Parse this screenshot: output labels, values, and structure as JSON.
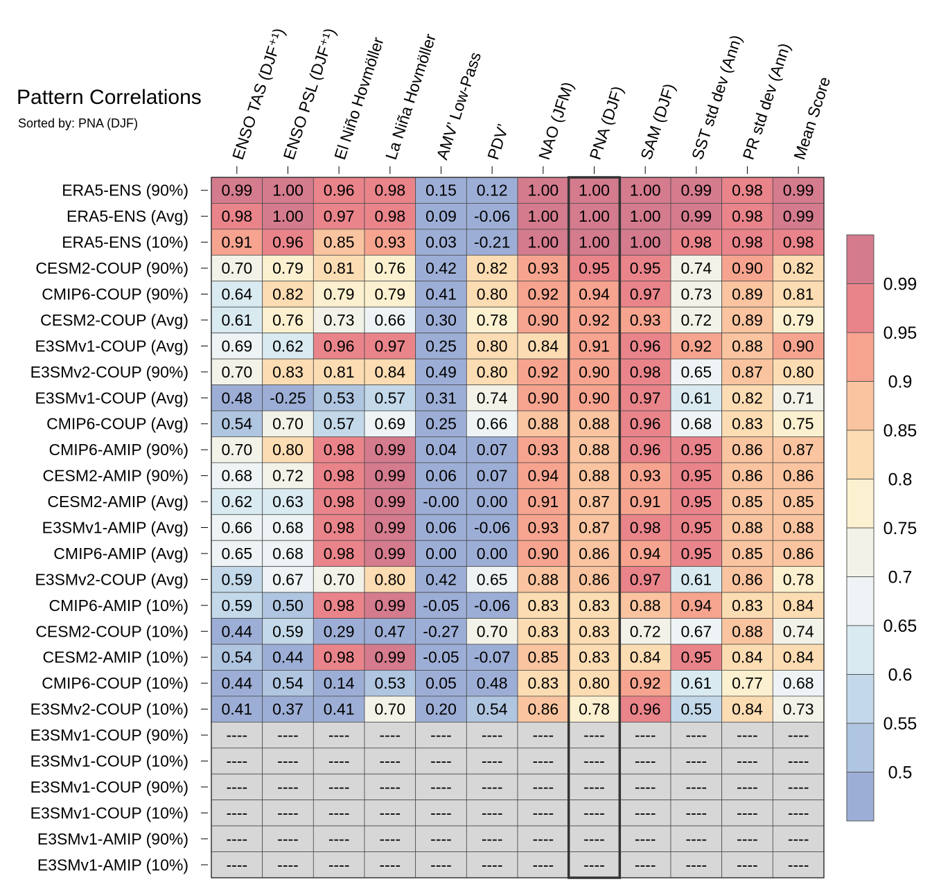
{
  "title": "Pattern Correlations",
  "subtitle": "Sorted by: PNA (DJF)",
  "chart_data": {
    "type": "heatmap",
    "columns": [
      "ENSO TAS (DJF⁺¹)",
      "ENSO PSL (DJF⁺¹)",
      "El Niño Hovmöller",
      "La Niña Hovmöller",
      "AMV’ Low-Pass",
      "PDV’",
      "NAO (JFM)",
      "PNA (DJF)",
      "SAM (DJF)",
      "SST std dev (Ann)",
      "PR std dev (Ann)",
      "Mean Score"
    ],
    "highlighted_column": "PNA (DJF)",
    "missing_label": "----",
    "rows": [
      {
        "name": "ERA5-ENS (90%)",
        "values": [
          0.99,
          1.0,
          0.96,
          0.98,
          0.15,
          0.12,
          1.0,
          1.0,
          1.0,
          0.99,
          0.98,
          0.99
        ]
      },
      {
        "name": "ERA5-ENS (Avg)",
        "values": [
          0.98,
          1.0,
          0.97,
          0.98,
          0.09,
          -0.06,
          1.0,
          1.0,
          1.0,
          0.99,
          0.98,
          0.99
        ]
      },
      {
        "name": "ERA5-ENS (10%)",
        "values": [
          0.91,
          0.96,
          0.85,
          0.93,
          0.03,
          -0.21,
          1.0,
          1.0,
          1.0,
          0.98,
          0.98,
          0.98
        ]
      },
      {
        "name": "CESM2-COUP (90%)",
        "values": [
          0.7,
          0.79,
          0.81,
          0.76,
          0.42,
          0.82,
          0.93,
          0.95,
          0.95,
          0.74,
          0.9,
          0.82
        ]
      },
      {
        "name": "CMIP6-COUP (90%)",
        "values": [
          0.64,
          0.82,
          0.79,
          0.79,
          0.41,
          0.8,
          0.92,
          0.94,
          0.97,
          0.73,
          0.89,
          0.81
        ]
      },
      {
        "name": "CESM2-COUP (Avg)",
        "values": [
          0.61,
          0.76,
          0.73,
          0.66,
          0.3,
          0.78,
          0.9,
          0.92,
          0.93,
          0.72,
          0.89,
          0.79
        ]
      },
      {
        "name": "E3SMv1-COUP (Avg)",
        "values": [
          0.69,
          0.62,
          0.96,
          0.97,
          0.25,
          0.8,
          0.84,
          0.91,
          0.96,
          0.92,
          0.88,
          0.9
        ]
      },
      {
        "name": "E3SMv2-COUP (90%)",
        "values": [
          0.7,
          0.83,
          0.81,
          0.84,
          0.49,
          0.8,
          0.92,
          0.9,
          0.98,
          0.65,
          0.87,
          0.8
        ]
      },
      {
        "name": "E3SMv1-COUP (Avg)",
        "values": [
          0.48,
          -0.25,
          0.53,
          0.57,
          0.31,
          0.74,
          0.9,
          0.9,
          0.97,
          0.61,
          0.82,
          0.71
        ]
      },
      {
        "name": "CMIP6-COUP (Avg)",
        "values": [
          0.54,
          0.7,
          0.57,
          0.69,
          0.25,
          0.66,
          0.88,
          0.88,
          0.96,
          0.68,
          0.83,
          0.75
        ]
      },
      {
        "name": "CMIP6-AMIP (90%)",
        "values": [
          0.7,
          0.8,
          0.98,
          0.99,
          0.04,
          0.07,
          0.93,
          0.88,
          0.96,
          0.95,
          0.86,
          0.87
        ]
      },
      {
        "name": "CESM2-AMIP (90%)",
        "values": [
          0.68,
          0.72,
          0.98,
          0.99,
          0.06,
          0.07,
          0.94,
          0.88,
          0.93,
          0.95,
          0.86,
          0.86
        ]
      },
      {
        "name": "CESM2-AMIP (Avg)",
        "values": [
          0.62,
          0.63,
          0.98,
          0.99,
          -0.0,
          0.0,
          0.91,
          0.87,
          0.91,
          0.95,
          0.85,
          0.85
        ]
      },
      {
        "name": "E3SMv1-AMIP (Avg)",
        "values": [
          0.66,
          0.68,
          0.98,
          0.99,
          0.06,
          -0.06,
          0.93,
          0.87,
          0.98,
          0.95,
          0.88,
          0.88
        ]
      },
      {
        "name": "CMIP6-AMIP (Avg)",
        "values": [
          0.65,
          0.68,
          0.98,
          0.99,
          0.0,
          0.0,
          0.9,
          0.86,
          0.94,
          0.95,
          0.85,
          0.86
        ]
      },
      {
        "name": "E3SMv2-COUP (Avg)",
        "values": [
          0.59,
          0.67,
          0.7,
          0.8,
          0.42,
          0.65,
          0.88,
          0.86,
          0.97,
          0.61,
          0.86,
          0.78
        ]
      },
      {
        "name": "CMIP6-AMIP (10%)",
        "values": [
          0.59,
          0.5,
          0.98,
          0.99,
          -0.05,
          -0.06,
          0.83,
          0.83,
          0.88,
          0.94,
          0.83,
          0.84
        ]
      },
      {
        "name": "CESM2-COUP (10%)",
        "values": [
          0.44,
          0.59,
          0.29,
          0.47,
          -0.27,
          0.7,
          0.83,
          0.83,
          0.72,
          0.67,
          0.88,
          0.74
        ]
      },
      {
        "name": "CESM2-AMIP (10%)",
        "values": [
          0.54,
          0.44,
          0.98,
          0.99,
          -0.05,
          -0.07,
          0.85,
          0.83,
          0.84,
          0.95,
          0.84,
          0.84
        ]
      },
      {
        "name": "CMIP6-COUP (10%)",
        "values": [
          0.44,
          0.54,
          0.14,
          0.53,
          0.05,
          0.48,
          0.83,
          0.8,
          0.92,
          0.61,
          0.77,
          0.68
        ]
      },
      {
        "name": "E3SMv2-COUP (10%)",
        "values": [
          0.41,
          0.37,
          0.41,
          0.7,
          0.2,
          0.54,
          0.86,
          0.78,
          0.96,
          0.55,
          0.84,
          0.73
        ]
      },
      {
        "name": "E3SMv1-COUP (90%)",
        "values": [
          null,
          null,
          null,
          null,
          null,
          null,
          null,
          null,
          null,
          null,
          null,
          null
        ]
      },
      {
        "name": "E3SMv1-COUP (10%)",
        "values": [
          null,
          null,
          null,
          null,
          null,
          null,
          null,
          null,
          null,
          null,
          null,
          null
        ]
      },
      {
        "name": "E3SMv1-COUP (90%)",
        "values": [
          null,
          null,
          null,
          null,
          null,
          null,
          null,
          null,
          null,
          null,
          null,
          null
        ]
      },
      {
        "name": "E3SMv1-COUP (10%)",
        "values": [
          null,
          null,
          null,
          null,
          null,
          null,
          null,
          null,
          null,
          null,
          null,
          null
        ]
      },
      {
        "name": "E3SMv1-AMIP (90%)",
        "values": [
          null,
          null,
          null,
          null,
          null,
          null,
          null,
          null,
          null,
          null,
          null,
          null
        ]
      },
      {
        "name": "E3SMv1-AMIP (10%)",
        "values": [
          null,
          null,
          null,
          null,
          null,
          null,
          null,
          null,
          null,
          null,
          null,
          null
        ]
      }
    ],
    "colorbar": {
      "levels": [
        0.5,
        0.55,
        0.6,
        0.65,
        0.7,
        0.75,
        0.8,
        0.85,
        0.9,
        0.95,
        0.99
      ],
      "labels": [
        "0.5",
        "0.55",
        "0.6",
        "0.65",
        "0.7",
        "0.75",
        "0.8",
        "0.85",
        "0.9",
        "0.95",
        "0.99"
      ],
      "colors": [
        "#9daed6",
        "#afc5e0",
        "#c3d9ea",
        "#d9eaf1",
        "#eef4f5",
        "#f3f2e8",
        "#fbf0cf",
        "#fcdcb2",
        "#f9c49f",
        "#f6a48f",
        "#e9848a",
        "#d47b8e"
      ],
      "missing_color": "#d7d7d7"
    }
  }
}
